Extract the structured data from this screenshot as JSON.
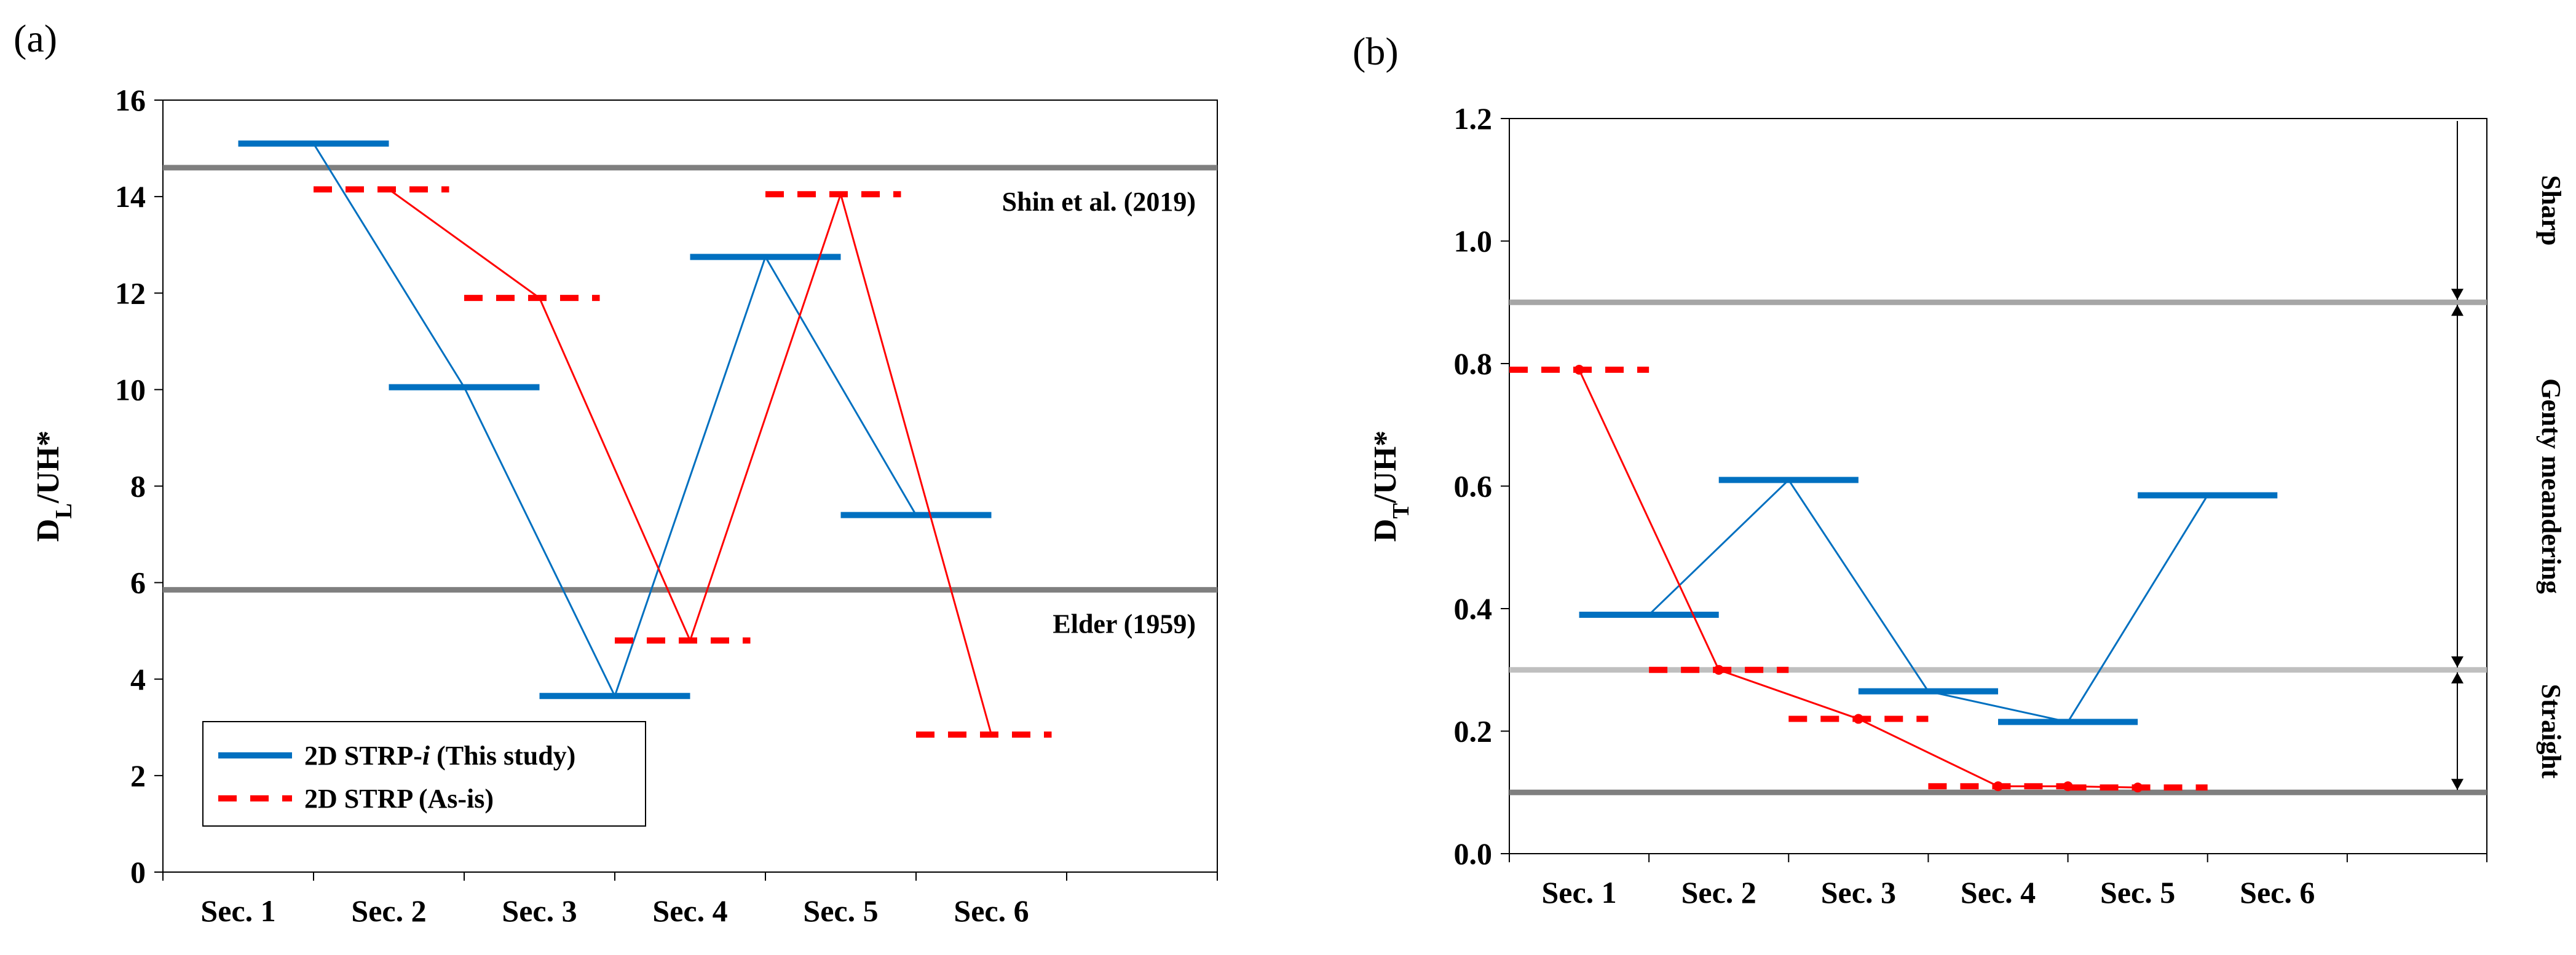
{
  "chart_data": [
    {
      "panel_label": "(a)",
      "type": "line",
      "ylabel": "D_L/UH*",
      "ylabel_main": "D",
      "ylabel_sub": "L",
      "ylabel_rest": "/UH*",
      "ylim": [
        0,
        16
      ],
      "yticks": [
        0,
        2,
        4,
        6,
        8,
        10,
        12,
        14,
        16
      ],
      "categories": [
        "Sec. 1",
        "Sec. 2",
        "Sec. 3",
        "Sec. 4",
        "Sec. 5",
        "Sec. 6"
      ],
      "x_range": [
        0,
        7
      ],
      "reference_lines": [
        {
          "label": "Shin et al. (2019)",
          "y": 14.6,
          "color": "#7f7f7f"
        },
        {
          "label": "Elder (1959)",
          "y": 5.85,
          "color": "#7f7f7f"
        }
      ],
      "series": [
        {
          "name": "2D STRP-i (This study)",
          "name_main": "2D STRP-",
          "name_italic": "i",
          "name_rest": " (This study)",
          "color": "#0070c0",
          "style": "solid",
          "segments": [
            {
              "x": [
                0.5,
                1.5
              ],
              "y": 15.1
            },
            {
              "x": [
                1.5,
                2.5
              ],
              "y": 10.05
            },
            {
              "x": [
                2.5,
                3.5
              ],
              "y": 3.65
            },
            {
              "x": [
                3.5,
                4.5
              ],
              "y": 12.75
            },
            {
              "x": [
                4.5,
                5.5
              ],
              "y": 7.4
            }
          ],
          "connector": [
            [
              1.0,
              15.1
            ],
            [
              2.0,
              10.05
            ],
            [
              3.0,
              3.65
            ],
            [
              4.0,
              12.75
            ],
            [
              5.0,
              7.4
            ]
          ]
        },
        {
          "name": "2D STRP (As-is)",
          "color": "#ff0000",
          "style": "dashed",
          "segments": [
            {
              "x": [
                1.0,
                1.9
              ],
              "y": 14.15
            },
            {
              "x": [
                2.0,
                2.9
              ],
              "y": 11.9
            },
            {
              "x": [
                3.0,
                3.9
              ],
              "y": 4.8
            },
            {
              "x": [
                4.0,
                4.9
              ],
              "y": 14.05
            },
            {
              "x": [
                5.0,
                5.9
              ],
              "y": 2.85
            }
          ],
          "connector": [
            [
              1.5,
              14.15
            ],
            [
              2.5,
              11.9
            ],
            [
              3.5,
              4.8
            ],
            [
              4.5,
              14.05
            ],
            [
              5.5,
              2.85
            ]
          ]
        }
      ]
    },
    {
      "panel_label": "(b)",
      "type": "line",
      "ylabel": "D_T/UH*",
      "ylabel_main": "D",
      "ylabel_sub": "T",
      "ylabel_rest": "/UH*",
      "ylim": [
        0.0,
        1.2
      ],
      "yticks": [
        "0.0",
        "0.2",
        "0.4",
        "0.6",
        "0.8",
        "1.0",
        "1.2"
      ],
      "categories": [
        "Sec. 1",
        "Sec. 2",
        "Sec. 3",
        "Sec. 4",
        "Sec. 5",
        "Sec. 6"
      ],
      "x_range": [
        0,
        7
      ],
      "reference_lines": [
        {
          "y": 0.9,
          "color": "#a6a6a6"
        },
        {
          "y": 0.3,
          "color": "#bfbfbf"
        },
        {
          "y": 0.1,
          "color": "#7f7f7f"
        }
      ],
      "zones": [
        {
          "label": "Sharp",
          "from": 0.9,
          "to": 1.2
        },
        {
          "label": "Genty meandering",
          "from": 0.3,
          "to": 0.9
        },
        {
          "label": "Straight",
          "from": 0.1,
          "to": 0.3
        }
      ],
      "series": [
        {
          "name": "2D STRP-i (This study)",
          "color": "#0070c0",
          "style": "solid",
          "segments": [
            {
              "x": [
                0.5,
                1.5
              ],
              "y": 0.39
            },
            {
              "x": [
                1.5,
                2.5
              ],
              "y": 0.61
            },
            {
              "x": [
                2.5,
                3.5
              ],
              "y": 0.265
            },
            {
              "x": [
                3.5,
                4.5
              ],
              "y": 0.215
            },
            {
              "x": [
                4.5,
                5.5
              ],
              "y": 0.585
            }
          ],
          "connector": [
            [
              1.0,
              0.39
            ],
            [
              2.0,
              0.61
            ],
            [
              3.0,
              0.265
            ],
            [
              4.0,
              0.215
            ],
            [
              5.0,
              0.585
            ]
          ]
        },
        {
          "name": "2D STRP (As-is)",
          "color": "#ff0000",
          "style": "dashed",
          "segments": [
            {
              "x": [
                0.0,
                1.0
              ],
              "y": 0.79
            },
            {
              "x": [
                1.0,
                2.0
              ],
              "y": 0.3
            },
            {
              "x": [
                2.0,
                3.0
              ],
              "y": 0.22
            },
            {
              "x": [
                3.0,
                4.0
              ],
              "y": 0.11
            },
            {
              "x": [
                4.0,
                5.0
              ],
              "y": 0.108
            }
          ],
          "connector": [
            [
              0.5,
              0.79
            ],
            [
              1.5,
              0.3
            ],
            [
              2.5,
              0.22
            ],
            [
              3.5,
              0.11
            ],
            [
              4.0,
              0.11
            ],
            [
              4.5,
              0.108
            ]
          ]
        }
      ]
    }
  ]
}
